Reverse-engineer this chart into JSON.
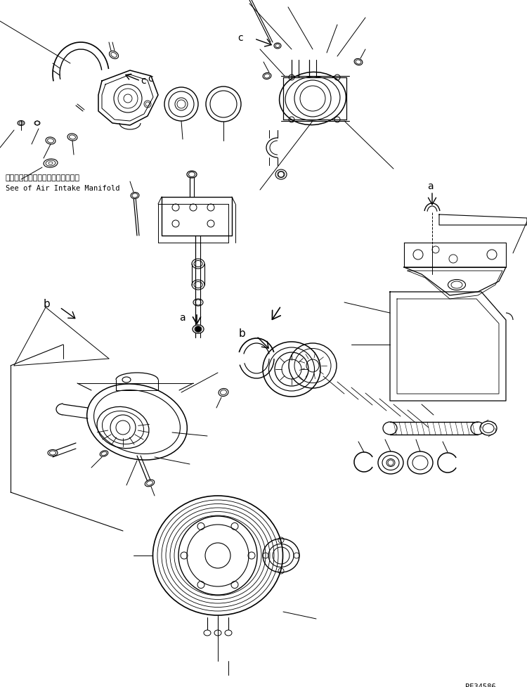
{
  "bg_color": "#ffffff",
  "line_color": "#000000",
  "fig_width": 7.5,
  "fig_height": 9.77,
  "dpi": 100,
  "watermark": "PE34586",
  "annotation_text_jp": "エアーインテークマニホールド参照",
  "annotation_text_en": "See of Air Intake Manifold"
}
